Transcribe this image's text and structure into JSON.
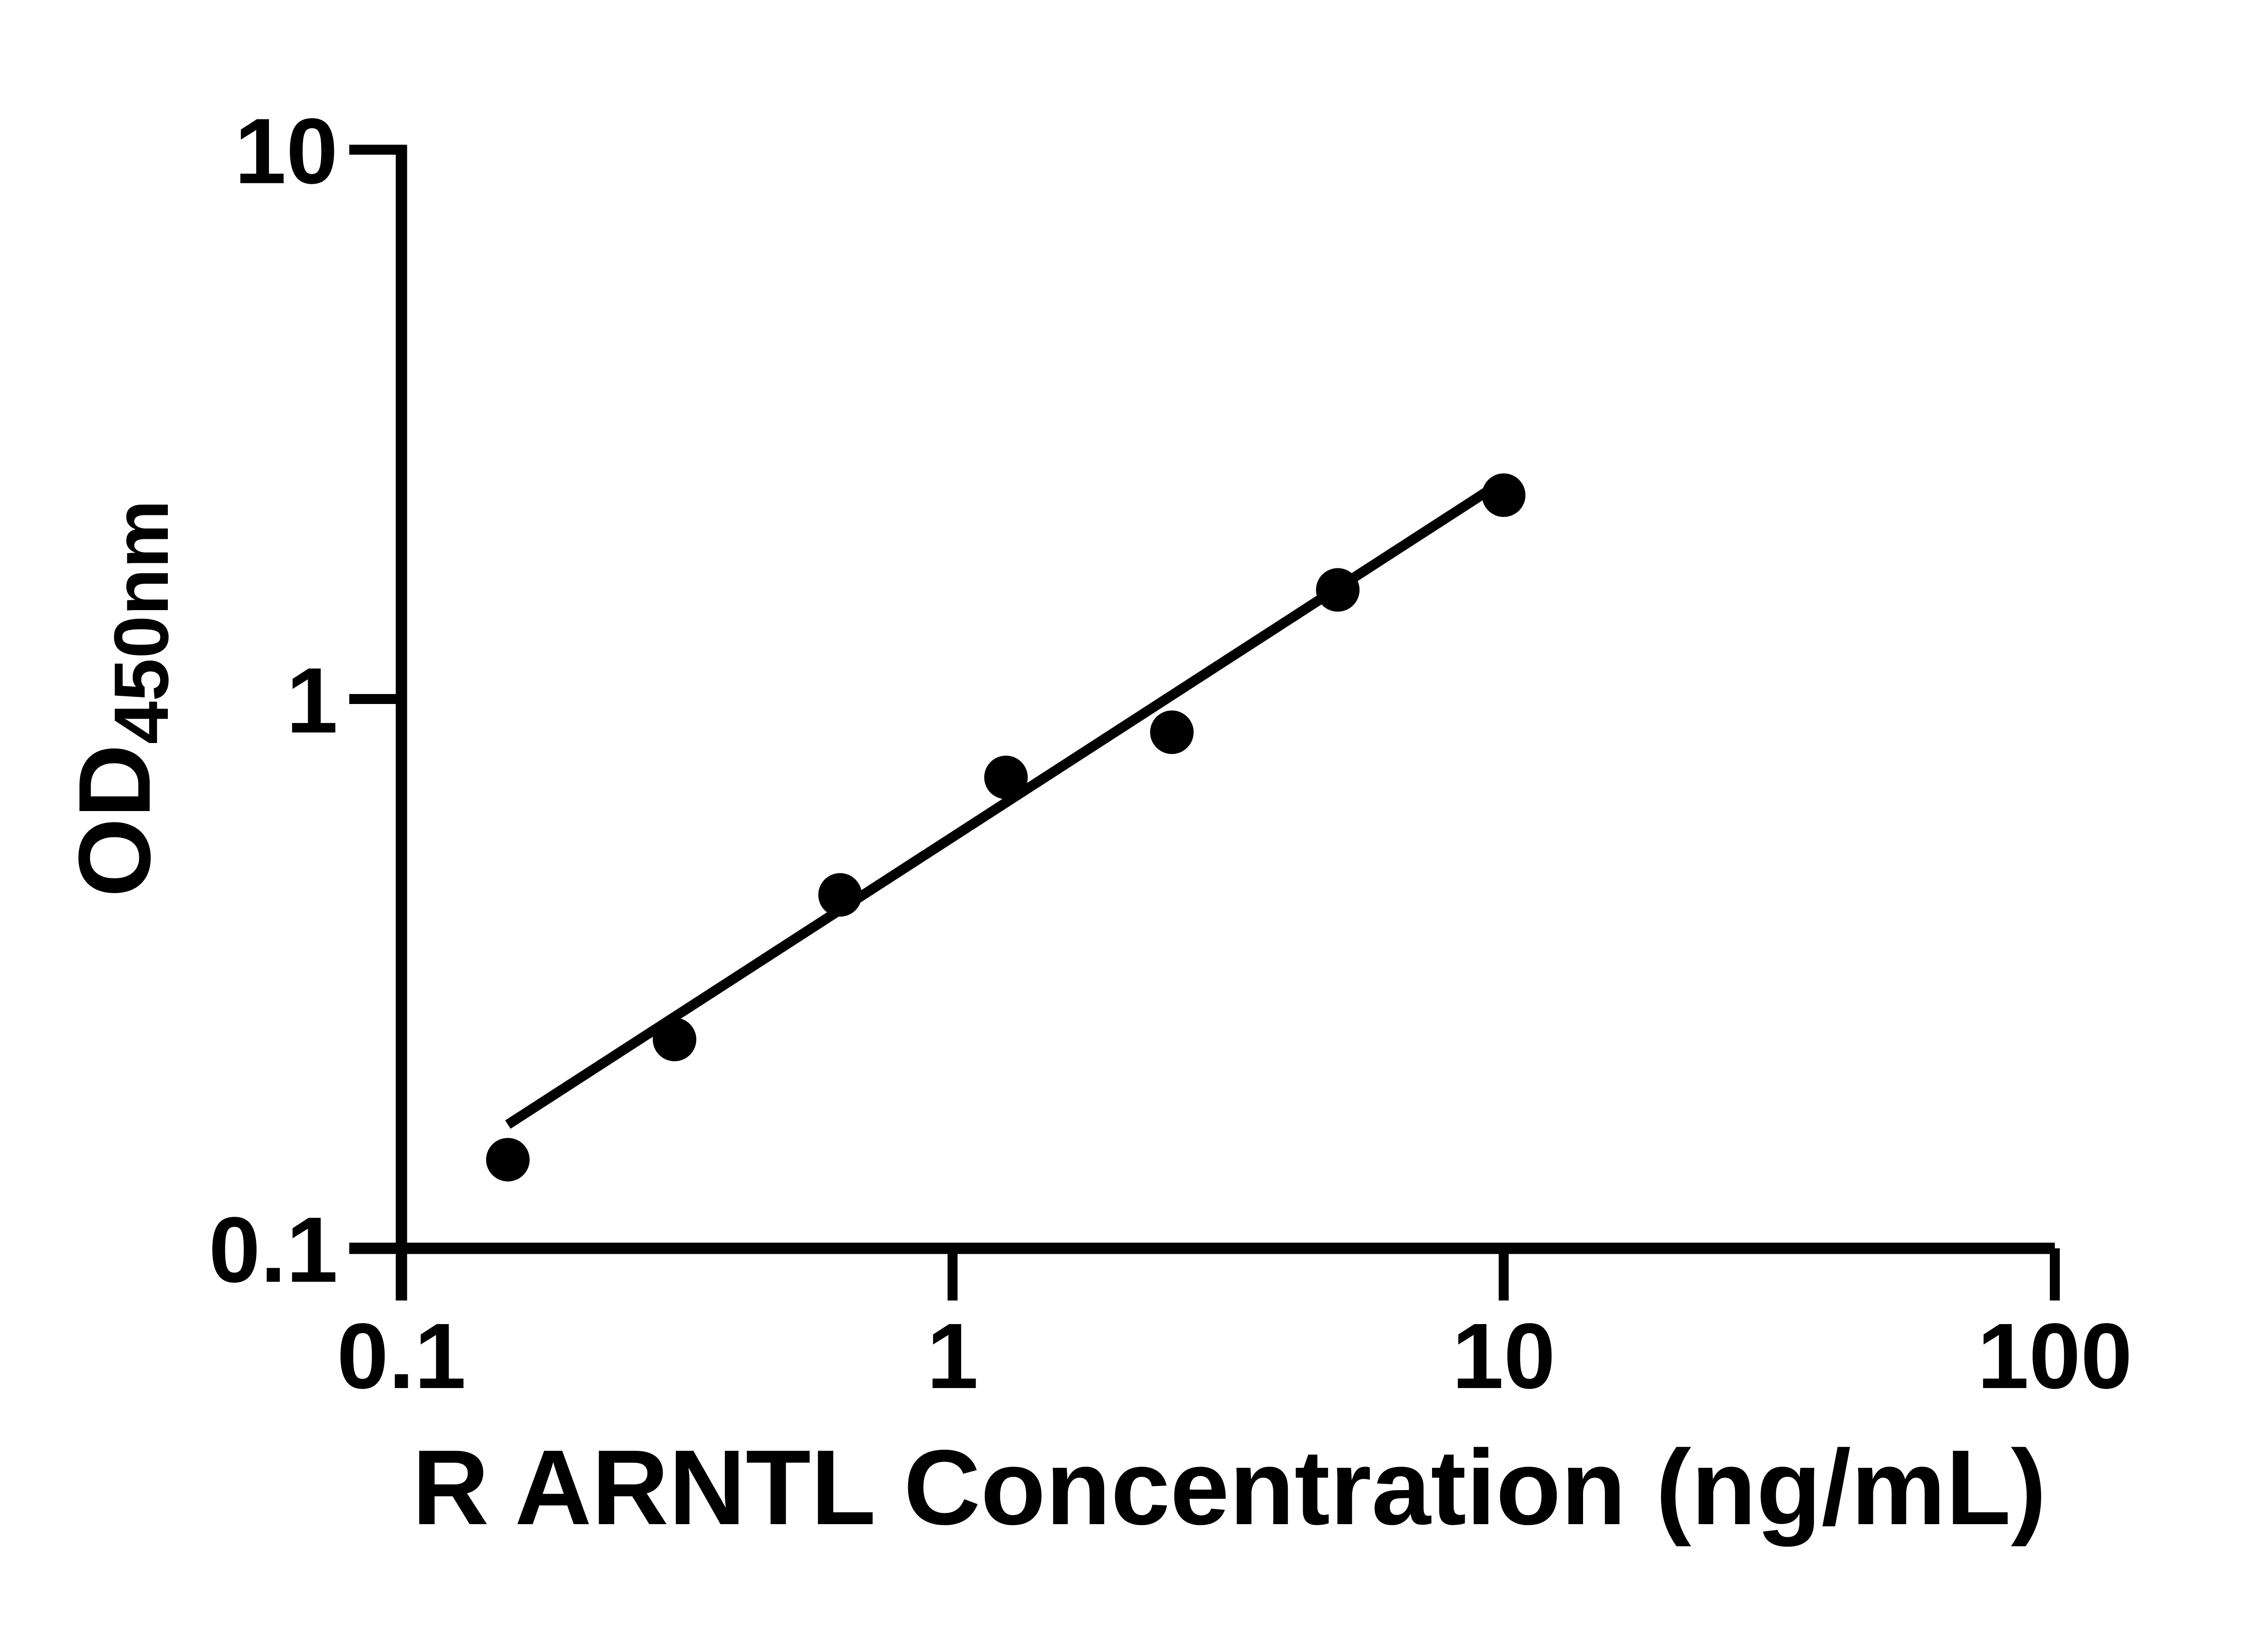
{
  "page": {
    "background_color": "#ffffff",
    "foreground_color": "#000000"
  },
  "chart_data": {
    "type": "scatter",
    "title": "",
    "xlabel": "R ARNTL Concentration (ng/mL)",
    "ylabel_main": "OD",
    "ylabel_sub": "450nm",
    "x_scale": "log",
    "y_scale": "log",
    "xlim": [
      0.1,
      100
    ],
    "ylim": [
      0.1,
      10
    ],
    "x_ticks": [
      0.1,
      1,
      10,
      100
    ],
    "x_tick_labels": [
      "0.1",
      "1",
      "10",
      "100"
    ],
    "y_ticks": [
      0.1,
      1,
      10
    ],
    "y_tick_labels": [
      "0.1",
      "1",
      "10"
    ],
    "grid": false,
    "legend": false,
    "marker_color": "#000000",
    "line_color": "#000000",
    "series": [
      {
        "name": "standard-curve-points",
        "marker": "circle",
        "points": [
          {
            "x": 0.156,
            "y": 0.145
          },
          {
            "x": 0.313,
            "y": 0.24
          },
          {
            "x": 0.625,
            "y": 0.44
          },
          {
            "x": 1.25,
            "y": 0.72
          },
          {
            "x": 2.5,
            "y": 0.87
          },
          {
            "x": 5,
            "y": 1.58
          },
          {
            "x": 10,
            "y": 2.35
          }
        ]
      }
    ],
    "trendline": {
      "x1": 0.156,
      "y1": 0.168,
      "x2": 9.35,
      "y2": 2.39
    }
  }
}
